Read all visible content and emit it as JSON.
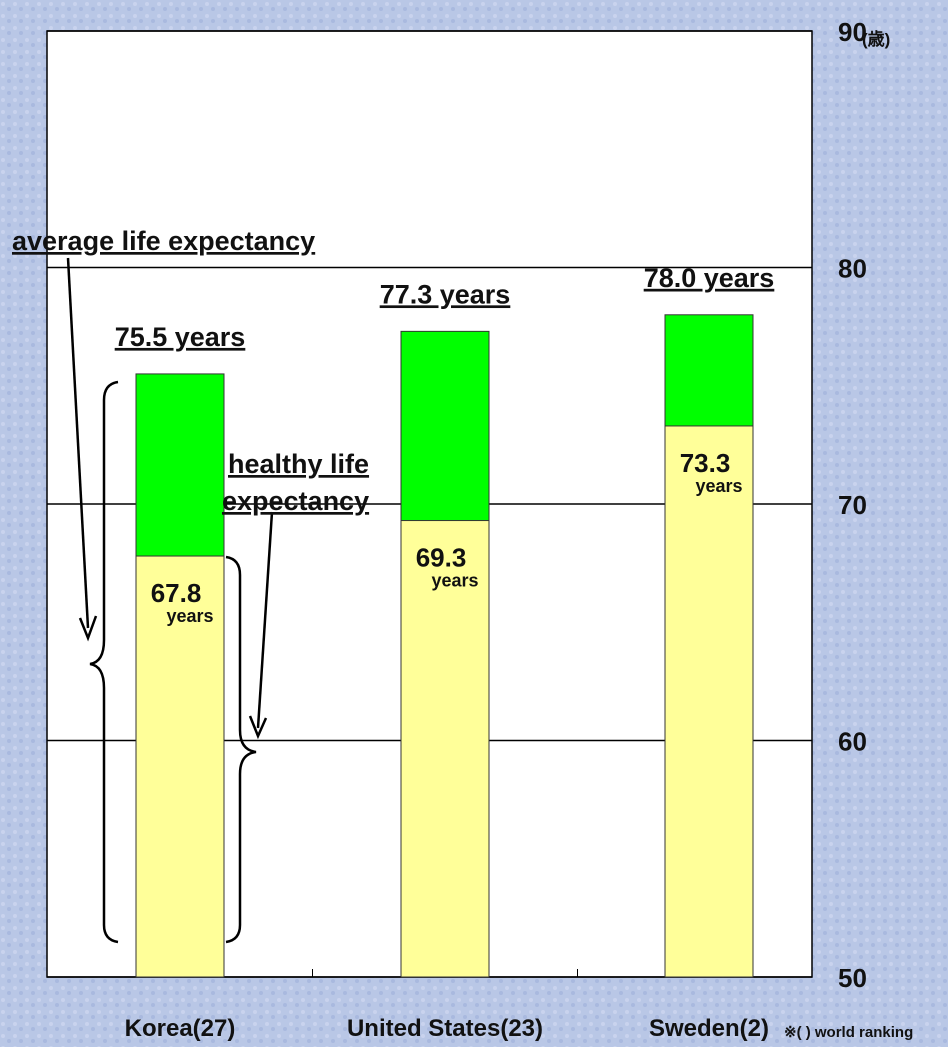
{
  "chart_data": {
    "type": "bar",
    "categories": [
      "Korea(27)",
      "United States(23)",
      "Sweden(2)"
    ],
    "series": [
      {
        "color": "#00ff00",
        "values": [
          75.5,
          77.3,
          78.0
        ],
        "value_labels": [
          "75.5 years",
          "77.3 years",
          "78.0 years"
        ]
      },
      {
        "color": "#ffff99",
        "values": [
          67.8,
          69.3,
          73.3
        ],
        "value_labels": [
          "67.8",
          "69.3",
          "73.3"
        ]
      }
    ],
    "value_unit": "years",
    "ylim": [
      50,
      90
    ],
    "yticks": [
      50,
      60,
      70,
      80,
      90
    ],
    "y_unit": "(歳)",
    "grid": true,
    "annotations": [
      {
        "text": "average life expectancy"
      },
      {
        "lines": [
          "healthy life",
          "expectancy"
        ]
      }
    ],
    "footnote": "※(    ) world ranking"
  }
}
